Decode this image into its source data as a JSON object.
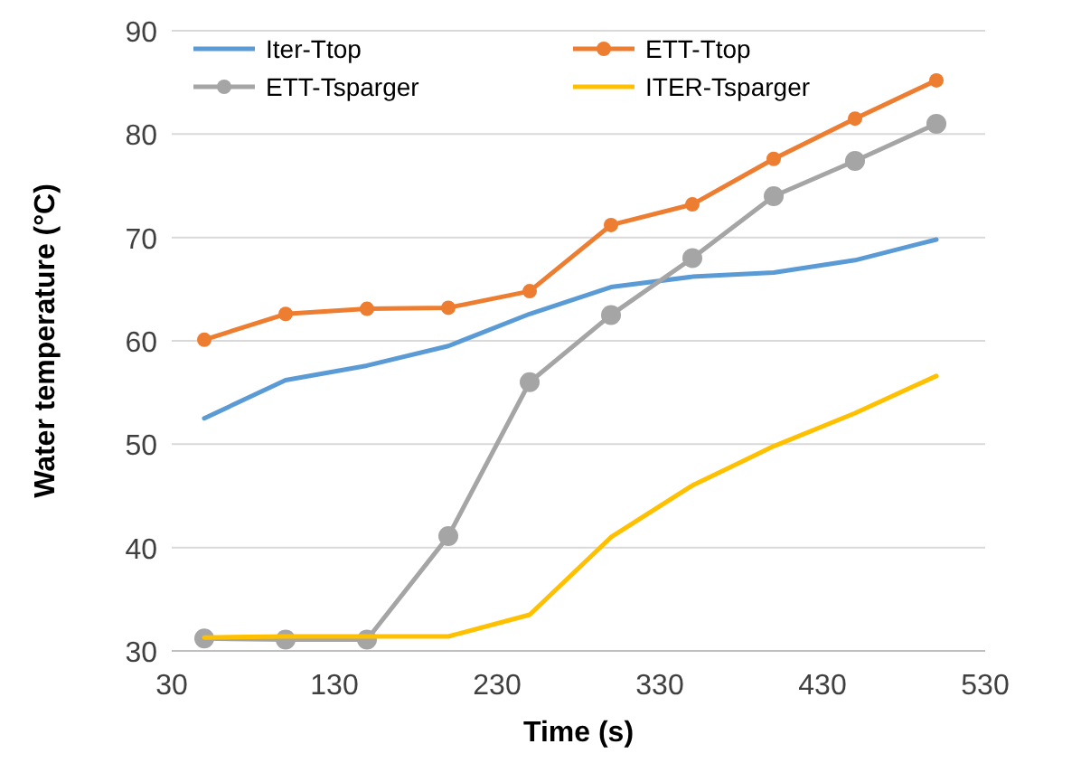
{
  "chart_data": {
    "type": "line",
    "xlabel": "Time (s)",
    "ylabel": "Water temperature (°C)",
    "x": [
      50,
      100,
      150,
      200,
      250,
      300,
      350,
      400,
      450,
      500
    ],
    "xlim": [
      30,
      530
    ],
    "xticks": [
      30,
      130,
      230,
      330,
      430,
      530
    ],
    "ylim": [
      30,
      90
    ],
    "yticks": [
      30,
      40,
      50,
      60,
      70,
      80,
      90
    ],
    "grid": "y",
    "legend": "top",
    "series": [
      {
        "name": "Iter-Ttop",
        "color": "#5b9bd5",
        "marker": "none",
        "values": [
          52.5,
          56.2,
          57.6,
          59.5,
          62.6,
          65.2,
          66.2,
          66.6,
          67.8,
          69.8
        ]
      },
      {
        "name": "ETT-Ttop",
        "color": "#ed7d31",
        "marker": "circle",
        "values": [
          60.1,
          62.6,
          63.1,
          63.2,
          64.8,
          71.2,
          73.2,
          77.6,
          81.5,
          85.2
        ]
      },
      {
        "name": "ETT-Tsparger",
        "color": "#a5a5a5",
        "marker": "circle",
        "values": [
          31.2,
          31.1,
          31.1,
          41.1,
          56,
          62.5,
          68,
          74,
          77.4,
          81
        ]
      },
      {
        "name": "ITER-Tsparger",
        "color": "#ffc000",
        "marker": "none",
        "values": [
          31.3,
          31.4,
          31.4,
          31.4,
          33.5,
          41,
          46,
          49.8,
          53,
          56.6
        ]
      }
    ]
  }
}
